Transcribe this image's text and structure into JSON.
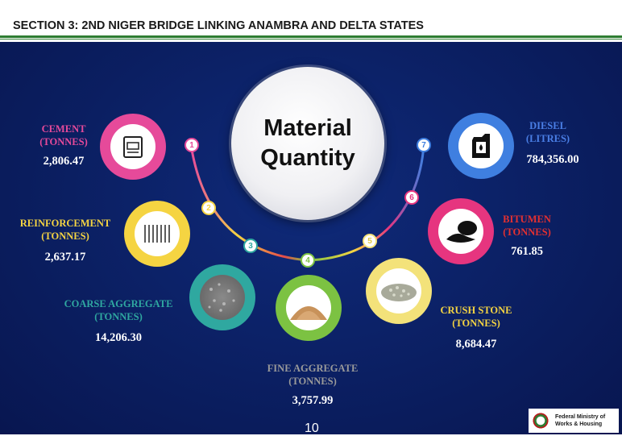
{
  "header": {
    "title": "SECTION 3: 2ND NIGER BRIDGE LINKING ANAMBRA AND DELTA STATES"
  },
  "center": {
    "line1": "Material",
    "line2": "Quantity"
  },
  "materials": [
    {
      "num": "1",
      "name": "CEMENT",
      "unit": "(TONNES)",
      "value": "2,806.47",
      "color": "#e64a9a",
      "icon": "cement-bag-icon"
    },
    {
      "num": "2",
      "name": "REINFORCEMENT",
      "unit": "(TONNES)",
      "value": "2,637.17",
      "color": "#f5d442",
      "icon": "steel-rods-icon"
    },
    {
      "num": "3",
      "name": "COARSE AGGREGATE",
      "unit": "(TONNES)",
      "value": "14,206.30",
      "color": "#2fa8a0",
      "icon": "gravel-icon"
    },
    {
      "num": "4",
      "name": "FINE AGGREGATE",
      "unit": "(TONNES)",
      "value": "3,757.99",
      "color": "#7cc242",
      "icon": "sand-pile-icon"
    },
    {
      "num": "5",
      "name": "CRUSH STONE",
      "unit": "(TONNES)",
      "value": "8,684.47",
      "color": "#f3e27a",
      "icon": "crushed-stone-icon"
    },
    {
      "num": "6",
      "name": "BITUMEN",
      "unit": "(TONNES)",
      "value": "761.85",
      "color": "#e6357f",
      "icon": "bitumen-barrel-icon"
    },
    {
      "num": "7",
      "name": "DIESEL",
      "unit": "(LITRES)",
      "value": "784,356.00",
      "color": "#3f7fe0",
      "icon": "fuel-can-icon"
    }
  ],
  "label_colors": {
    "cement": "#e64a9a",
    "reinforcement": "#f5d442",
    "coarse": "#2fa8a0",
    "fine": "#8b8b8b",
    "crush": "#f5d442",
    "bitumen": "#e63030",
    "diesel": "#4a7fe6"
  },
  "footer": {
    "page": "10",
    "ministry_line1": "Federal Ministry of",
    "ministry_line2": "Works & Housing"
  }
}
